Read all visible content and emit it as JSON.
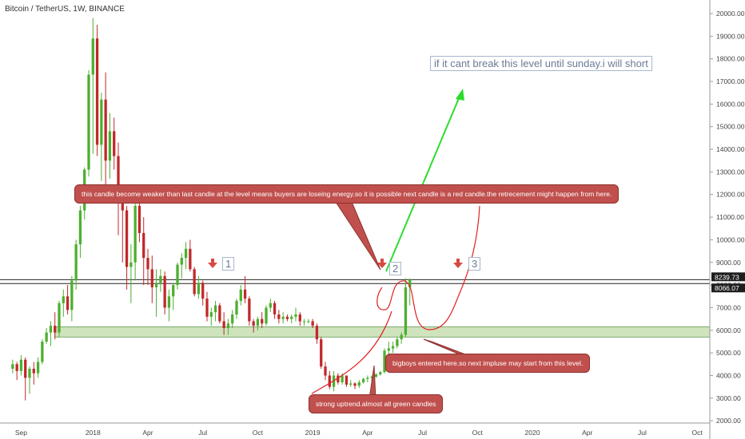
{
  "header": {
    "title": "Bitcoin / TetherUS, 1W, BINANCE"
  },
  "colors": {
    "up": "#4caf2f",
    "down": "#c0282a",
    "support_zone": "#cfe4bd",
    "callout": "#c0504d",
    "arrow_green": "#2ddc2d",
    "arrow_red": "#d64a43",
    "path_red": "#e02020"
  },
  "chart_data": {
    "type": "candlestick",
    "symbol": "Bitcoin / TetherUS",
    "interval": "1W",
    "exchange": "BINANCE",
    "y_ticks": [
      2000,
      3000,
      4000,
      5000,
      6000,
      7000,
      8000,
      9000,
      10000,
      11000,
      12000,
      13000,
      14000,
      15000,
      16000,
      17000,
      18000,
      19000,
      20000
    ],
    "y_tick_labels": [
      "2000.00",
      "3000.00",
      "4000.00",
      "5000.00",
      "6000.00",
      "7000.00",
      "8000.00",
      "9000.00",
      "10000.00",
      "11000.00",
      "12000.00",
      "13000.00",
      "14000.00",
      "15000.00",
      "16000.00",
      "17000.00",
      "18000.00",
      "19000.00",
      "20000.00"
    ],
    "ylim": [
      1900,
      20600
    ],
    "x_labels": [
      {
        "label": "Sep",
        "index": 2
      },
      {
        "label": "2018",
        "index": 19
      },
      {
        "label": "Apr",
        "index": 32
      },
      {
        "label": "Jul",
        "index": 45
      },
      {
        "label": "Oct",
        "index": 58
      },
      {
        "label": "2019",
        "index": 71
      },
      {
        "label": "Apr",
        "index": 84
      },
      {
        "label": "Jul",
        "index": 97
      },
      {
        "label": "Oct",
        "index": 110
      },
      {
        "label": "2020",
        "index": 123
      },
      {
        "label": "Apr",
        "index": 136
      },
      {
        "label": "Jul",
        "index": 149
      },
      {
        "label": "Oct",
        "index": 162
      }
    ],
    "x_index_range": [
      -3,
      165
    ],
    "price_labels": [
      {
        "label": "8239.73",
        "value": 8239.73
      },
      {
        "label": "8066.07",
        "value": 8066.07
      }
    ],
    "horizontal_lines": [
      8239.73,
      8066.07
    ],
    "support_zone": {
      "from": 5700,
      "to": 6150,
      "start_index": 10,
      "end_index": 165
    },
    "candles": [
      [
        4300,
        4700,
        4100,
        4500
      ],
      [
        4500,
        4600,
        3800,
        4200
      ],
      [
        4200,
        4900,
        4000,
        4700
      ],
      [
        4700,
        4800,
        2900,
        3900
      ],
      [
        3900,
        4400,
        3200,
        4300
      ],
      [
        4300,
        4600,
        3600,
        4100
      ],
      [
        4100,
        4800,
        3900,
        4600
      ],
      [
        4600,
        5600,
        4500,
        5500
      ],
      [
        5500,
        6100,
        5400,
        5900
      ],
      [
        5900,
        6400,
        5300,
        6200
      ],
      [
        6200,
        6800,
        5600,
        5900
      ],
      [
        5900,
        7300,
        5700,
        7200
      ],
      [
        7200,
        7800,
        6600,
        7500
      ],
      [
        7500,
        8000,
        6700,
        6900
      ],
      [
        6900,
        8400,
        6400,
        8200
      ],
      [
        8200,
        10000,
        7800,
        9800
      ],
      [
        9800,
        11500,
        9200,
        11300
      ],
      [
        11300,
        13200,
        10900,
        13100
      ],
      [
        13100,
        17500,
        12800,
        17300
      ],
      [
        17300,
        19800,
        13800,
        18900
      ],
      [
        18900,
        19500,
        13700,
        14200
      ],
      [
        14200,
        16500,
        12600,
        16200
      ],
      [
        16200,
        17400,
        11800,
        13500
      ],
      [
        13500,
        15600,
        12700,
        14800
      ],
      [
        14800,
        15400,
        13100,
        13700
      ],
      [
        13700,
        14300,
        10200,
        11600
      ],
      [
        11600,
        12000,
        9000,
        11300
      ],
      [
        11300,
        11500,
        7800,
        8800
      ],
      [
        8800,
        9800,
        7200,
        9000
      ],
      [
        9000,
        11800,
        8200,
        11500
      ],
      [
        11500,
        11900,
        9900,
        10300
      ],
      [
        10300,
        11000,
        8000,
        9200
      ],
      [
        9200,
        9600,
        8000,
        8700
      ],
      [
        8700,
        9300,
        7200,
        7900
      ],
      [
        7900,
        8700,
        6600,
        8100
      ],
      [
        8100,
        8700,
        7700,
        8400
      ],
      [
        8400,
        8600,
        6700,
        7000
      ],
      [
        7000,
        7800,
        6400,
        7500
      ],
      [
        7500,
        8100,
        6900,
        8000
      ],
      [
        8000,
        9000,
        7800,
        8900
      ],
      [
        8900,
        9400,
        8300,
        9200
      ],
      [
        9200,
        9900,
        8700,
        9600
      ],
      [
        9600,
        10000,
        8600,
        8700
      ],
      [
        8700,
        8800,
        7500,
        7600
      ],
      [
        7600,
        8400,
        7400,
        8100
      ],
      [
        8100,
        8200,
        7100,
        7400
      ],
      [
        7400,
        7700,
        6400,
        6600
      ],
      [
        6600,
        7000,
        6200,
        6800
      ],
      [
        6800,
        7300,
        6400,
        7100
      ],
      [
        7100,
        7200,
        6300,
        6400
      ],
      [
        6400,
        6800,
        5800,
        6100
      ],
      [
        6100,
        6500,
        5800,
        6300
      ],
      [
        6300,
        6900,
        6100,
        6700
      ],
      [
        6700,
        7400,
        6500,
        7300
      ],
      [
        7300,
        8000,
        7100,
        7800
      ],
      [
        7800,
        8400,
        7200,
        7400
      ],
      [
        7400,
        7500,
        6200,
        6400
      ],
      [
        6400,
        6500,
        5900,
        6200
      ],
      [
        6200,
        6600,
        6000,
        6500
      ],
      [
        6500,
        6800,
        6100,
        6300
      ],
      [
        6300,
        7100,
        6200,
        7000
      ],
      [
        7000,
        7400,
        6800,
        7200
      ],
      [
        7200,
        7300,
        6500,
        6700
      ],
      [
        6700,
        6900,
        6300,
        6500
      ],
      [
        6500,
        6800,
        6300,
        6600
      ],
      [
        6600,
        6700,
        6400,
        6500
      ],
      [
        6500,
        6700,
        6300,
        6600
      ],
      [
        6600,
        7000,
        6400,
        6700
      ],
      [
        6700,
        6800,
        6200,
        6400
      ],
      [
        6400,
        6500,
        6200,
        6400
      ],
      [
        6400,
        6500,
        6300,
        6400
      ],
      [
        6400,
        6500,
        6100,
        6200
      ],
      [
        6200,
        6300,
        5400,
        5600
      ],
      [
        5600,
        5700,
        4300,
        4400
      ],
      [
        4400,
        4600,
        3800,
        4000
      ],
      [
        4000,
        4200,
        3400,
        3500
      ],
      [
        3500,
        4200,
        3300,
        4000
      ],
      [
        4000,
        4100,
        3600,
        3700
      ],
      [
        3700,
        4100,
        3600,
        4000
      ],
      [
        4000,
        4000,
        3500,
        3600
      ],
      [
        3600,
        3800,
        3500,
        3650
      ],
      [
        3650,
        3700,
        3400,
        3550
      ],
      [
        3550,
        3800,
        3450,
        3700
      ],
      [
        3700,
        3900,
        3650,
        3850
      ],
      [
        3850,
        4000,
        3700,
        3900
      ],
      [
        3900,
        4000,
        3750,
        3950
      ],
      [
        3950,
        4100,
        3900,
        4050
      ],
      [
        4050,
        4200,
        4000,
        4150
      ],
      [
        4150,
        5200,
        4100,
        5100
      ],
      [
        5100,
        5500,
        4900,
        5200
      ],
      [
        5200,
        5500,
        5000,
        5300
      ],
      [
        5300,
        5700,
        5200,
        5600
      ],
      [
        5600,
        5900,
        5400,
        5800
      ],
      [
        5800,
        8300,
        5700,
        7900
      ],
      [
        7900,
        8300,
        7100,
        8240
      ]
    ]
  },
  "annotations": {
    "note_top": "if it cant break this level until sunday.i will short",
    "callout_main": "this candle become weaker than last candle at the level means buyers are loseing energy.so it is possible next candle is a red candle.the retrecement might happen from here.",
    "callout_bigboys": "bigboys entered here.so next impluse may start from  this level.",
    "callout_uptrend": "strong uptrend.almost all green candles",
    "marker_1": "1",
    "marker_2": "2",
    "marker_3": "3"
  }
}
